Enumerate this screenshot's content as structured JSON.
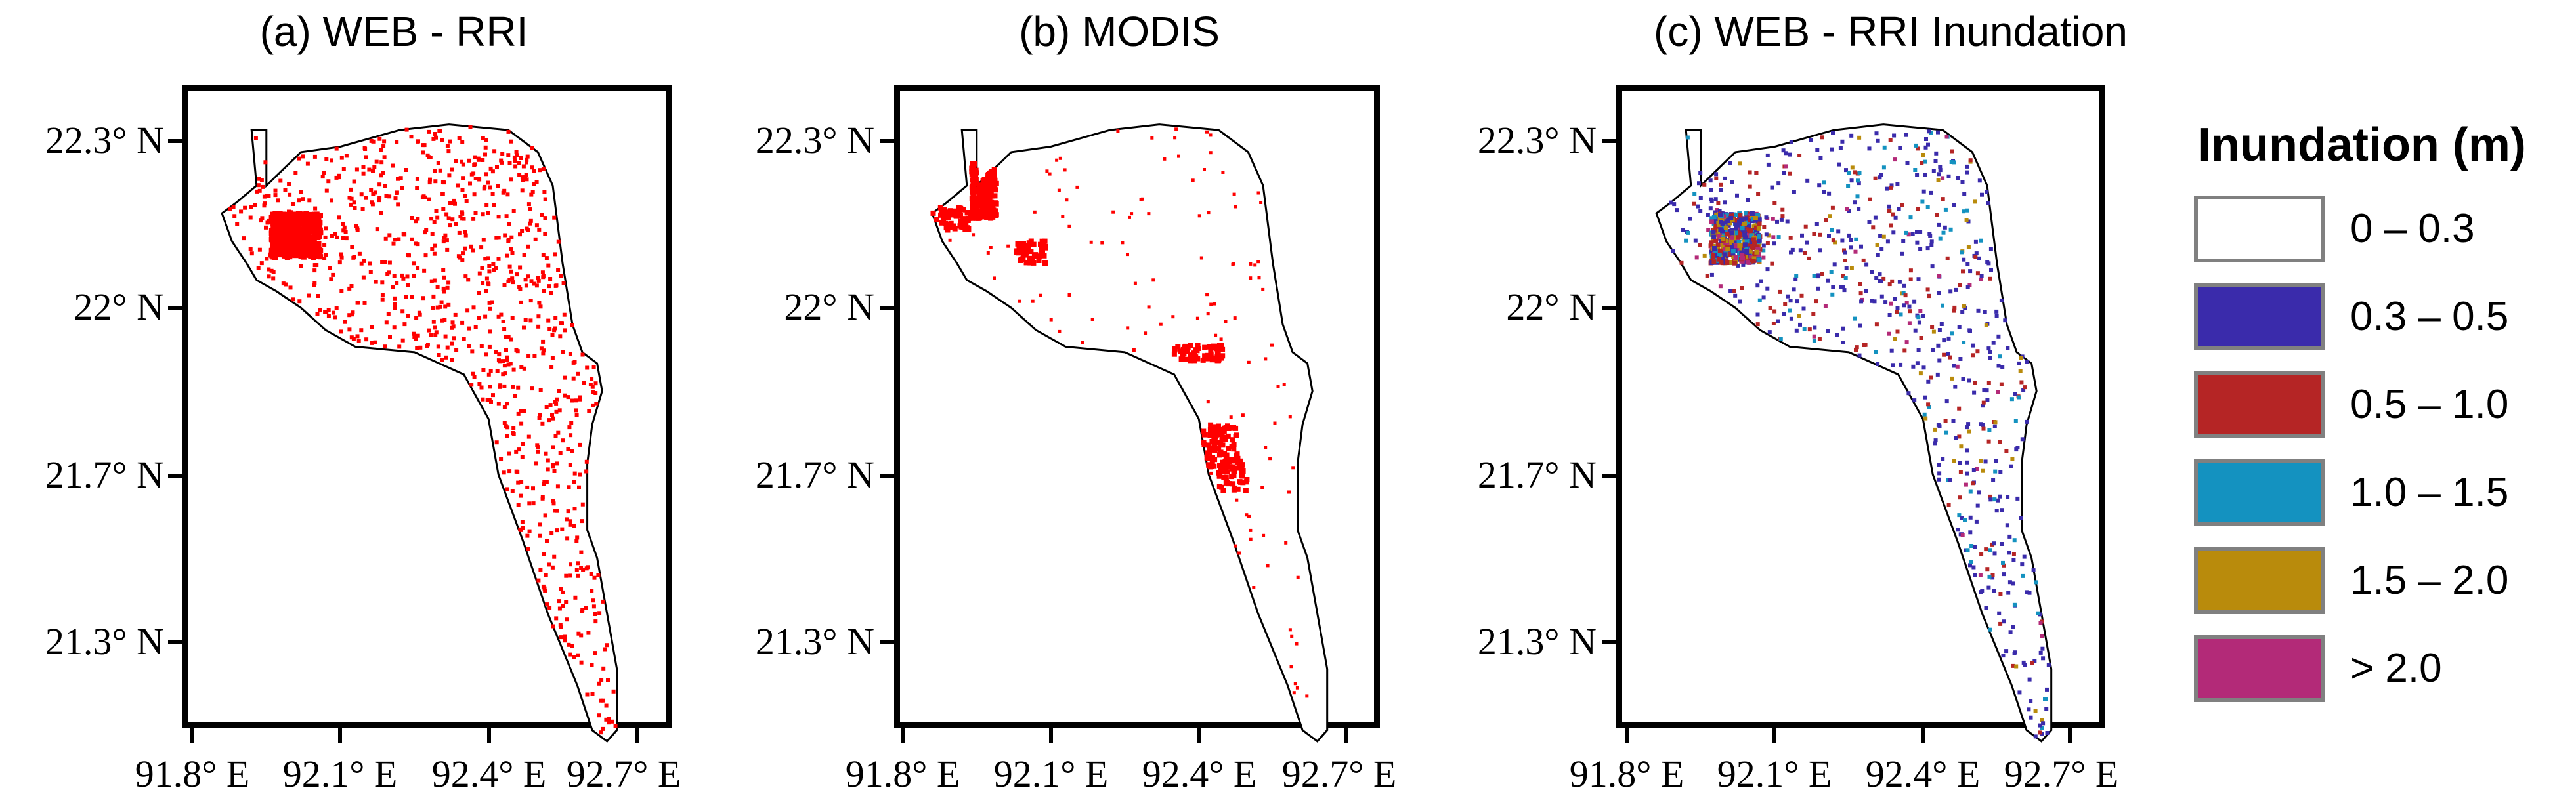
{
  "panels": [
    {
      "title": "(a) WEB - RRI",
      "type": "binary",
      "color": "#ff0000"
    },
    {
      "title": "(b) MODIS",
      "type": "binary",
      "color": "#ff0000"
    },
    {
      "title": "(c) WEB - RRI Inundation",
      "type": "classified"
    }
  ],
  "axes": {
    "y_ticks": [
      {
        "value": 22.3,
        "label": "22.3° N"
      },
      {
        "value": 22.0,
        "label": "22° N"
      },
      {
        "value": 21.7,
        "label": "21.7° N"
      },
      {
        "value": 21.3,
        "label": "21.3° N"
      }
    ],
    "x_ticks": [
      {
        "value": 91.8,
        "label": "91.8° E"
      },
      {
        "value": 92.1,
        "label": "92.1° E"
      },
      {
        "value": 92.4,
        "label": "92.4° E"
      },
      {
        "value": 92.7,
        "label": "92.7° E"
      }
    ]
  },
  "legend": {
    "title": "Inundation (m)",
    "classes": [
      {
        "label": "0 – 0.3",
        "color": "#ffffff"
      },
      {
        "label": "0.3 – 0.5",
        "color": "#3a2bab"
      },
      {
        "label": "0.5 – 1.0",
        "color": "#b52525"
      },
      {
        "label": "1.0 – 1.5",
        "color": "#1492c0"
      },
      {
        "label": "1.5 – 2.0",
        "color": "#b98b0c"
      },
      {
        "label": "> 2.0",
        "color": "#b32a78"
      }
    ]
  },
  "boundary_lonlat": [
    [
      91.92,
      22.32
    ],
    [
      91.95,
      22.32
    ],
    [
      91.95,
      22.22
    ],
    [
      92.02,
      22.28
    ],
    [
      92.1,
      22.29
    ],
    [
      92.22,
      22.32
    ],
    [
      92.32,
      22.33
    ],
    [
      92.44,
      22.32
    ],
    [
      92.5,
      22.28
    ],
    [
      92.53,
      22.22
    ],
    [
      92.55,
      22.08
    ],
    [
      92.57,
      21.97
    ],
    [
      92.59,
      21.92
    ],
    [
      92.62,
      21.9
    ],
    [
      92.63,
      21.85
    ],
    [
      92.61,
      21.79
    ],
    [
      92.6,
      21.72
    ],
    [
      92.6,
      21.6
    ],
    [
      92.62,
      21.55
    ],
    [
      92.64,
      21.45
    ],
    [
      92.66,
      21.35
    ],
    [
      92.66,
      21.24
    ],
    [
      92.64,
      21.22
    ],
    [
      92.61,
      21.24
    ],
    [
      92.58,
      21.32
    ],
    [
      92.52,
      21.45
    ],
    [
      92.47,
      21.58
    ],
    [
      92.42,
      21.7
    ],
    [
      92.4,
      21.8
    ],
    [
      92.35,
      21.88
    ],
    [
      92.25,
      21.92
    ],
    [
      92.13,
      21.93
    ],
    [
      92.07,
      21.96
    ],
    [
      92.02,
      22.0
    ],
    [
      91.97,
      22.03
    ],
    [
      91.93,
      22.05
    ],
    [
      91.91,
      22.08
    ],
    [
      91.88,
      22.12
    ],
    [
      91.86,
      22.17
    ],
    [
      91.89,
      22.19
    ],
    [
      91.93,
      22.22
    ],
    [
      91.92,
      22.32
    ]
  ]
}
